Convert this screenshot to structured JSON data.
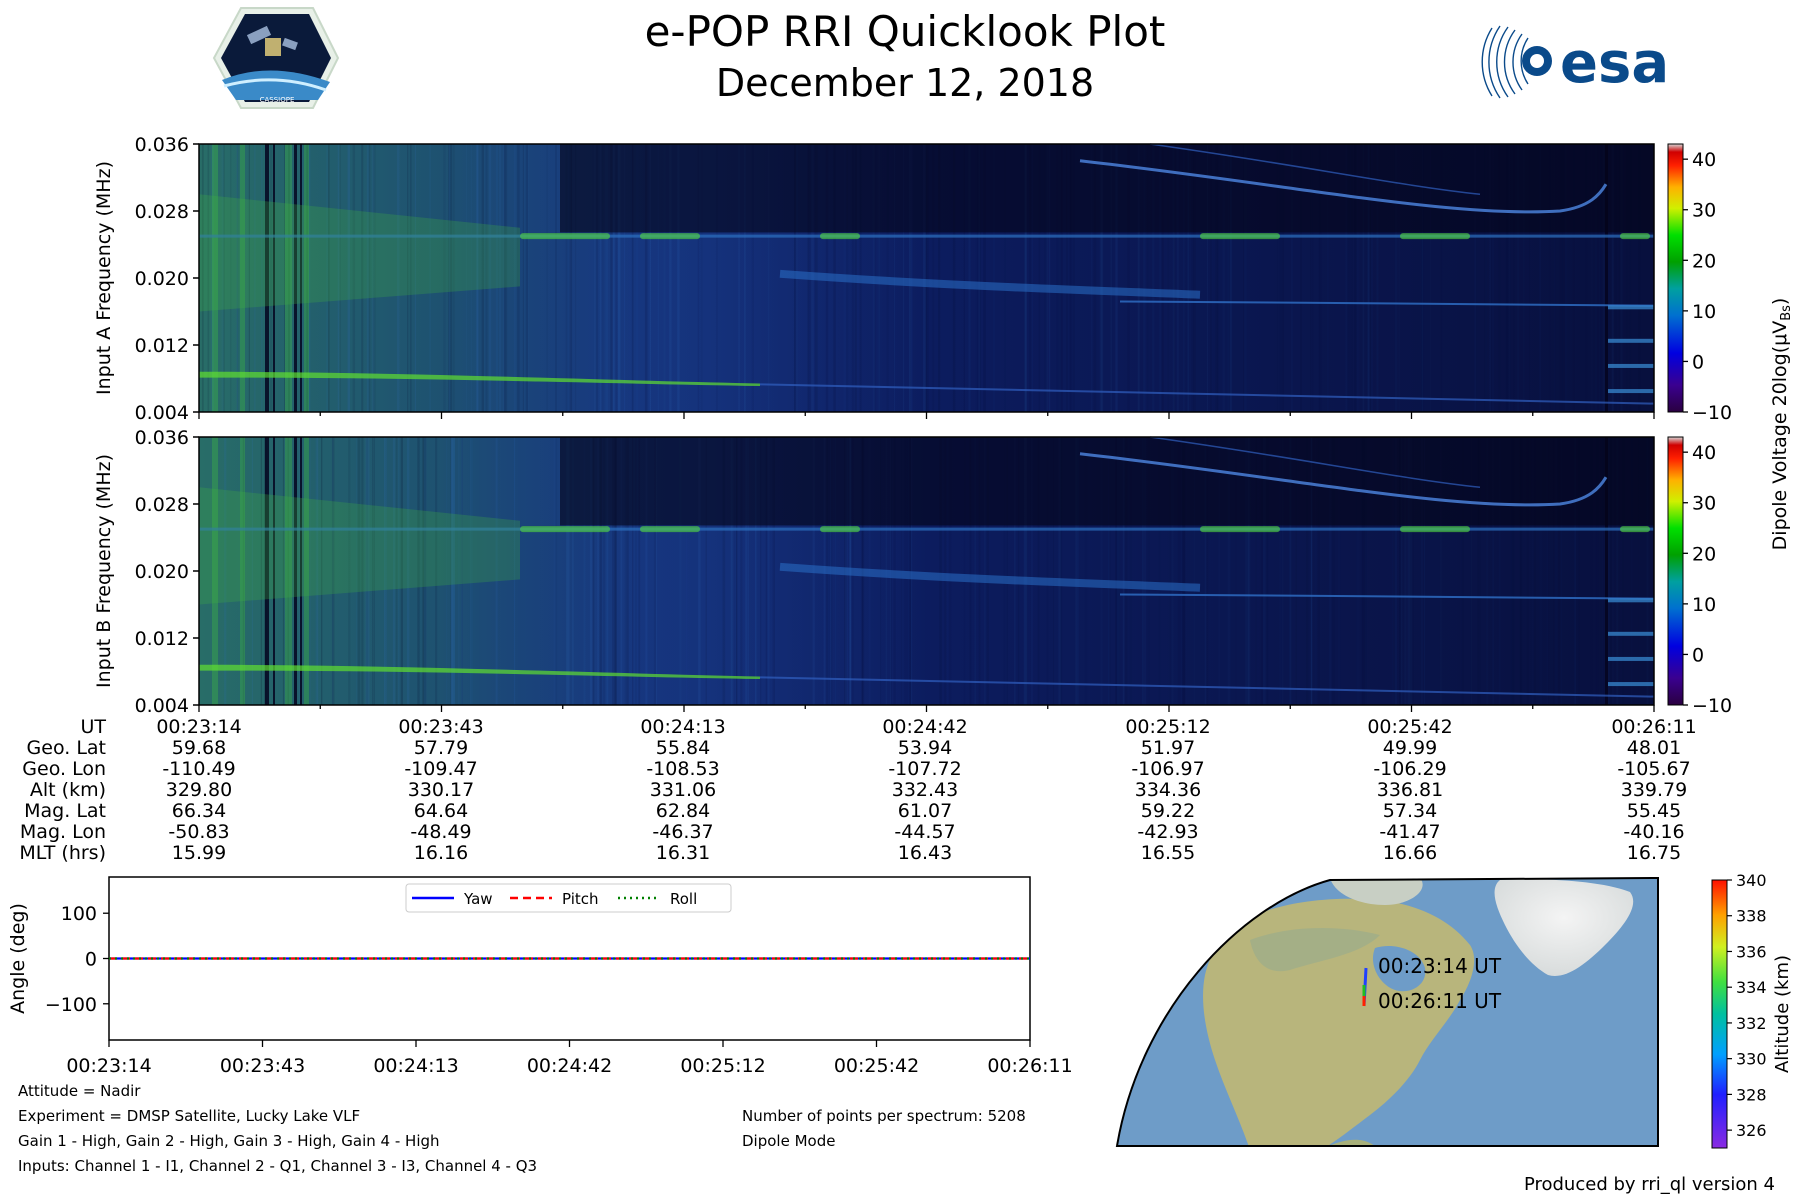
{
  "header": {
    "title": "e-POP RRI Quicklook Plot",
    "date": "December 12, 2018",
    "esa_logo_text": "esa",
    "cassiope_logo_text": "CASSIOPE"
  },
  "colors": {
    "yaw": "#0000ff",
    "pitch": "#ff0000",
    "roll": "#008000",
    "spectrogram_background": "#0a0a3c",
    "ocean": "#6e9cc8",
    "land": "#b5b87e"
  },
  "chart_data": [
    {
      "id": "input-a",
      "type": "heatmap",
      "ylabel": "Input A Frequency (MHz)",
      "yticks": [
        "0.004",
        "0.012",
        "0.020",
        "0.028",
        "0.036"
      ],
      "ylim": [
        0.004,
        0.036
      ],
      "colorbar": {
        "ticks": [
          "-10",
          "0",
          "10",
          "20",
          "30",
          "40"
        ],
        "range": [
          -10,
          43
        ]
      }
    },
    {
      "id": "input-b",
      "type": "heatmap",
      "ylabel": "Input B Frequency (MHz)",
      "yticks": [
        "0.004",
        "0.012",
        "0.020",
        "0.028",
        "0.036"
      ],
      "ylim": [
        0.004,
        0.036
      ],
      "colorbar": {
        "ticks": [
          "-10",
          "0",
          "10",
          "20",
          "30",
          "40"
        ],
        "range": [
          -10,
          43
        ]
      }
    },
    {
      "id": "attitude",
      "type": "line",
      "ylabel": "Angle (deg)",
      "yticks": [
        "−100",
        "0",
        "100"
      ],
      "ylim": [
        -180,
        180
      ],
      "xticks": [
        "00:23:14",
        "00:23:43",
        "00:24:13",
        "00:24:42",
        "00:25:12",
        "00:25:42",
        "00:26:11"
      ],
      "series": [
        {
          "name": "Yaw",
          "values": [
            0,
            0,
            0,
            0,
            0,
            0,
            0
          ]
        },
        {
          "name": "Pitch",
          "values": [
            0,
            0,
            0,
            0,
            0,
            0,
            0
          ]
        },
        {
          "name": "Roll",
          "values": [
            0,
            0,
            0,
            0,
            0,
            0,
            0
          ]
        }
      ]
    },
    {
      "id": "altitude-colorbar",
      "type": "map",
      "ylabel": "Altitude (km)",
      "ticks": [
        "326",
        "328",
        "330",
        "332",
        "334",
        "336",
        "338",
        "340"
      ],
      "range": [
        325,
        340
      ],
      "start_label": "00:23:14 UT",
      "end_label": "00:26:11 UT"
    }
  ],
  "spectrogram_shared": {
    "dipole_label": "Dipole Voltage 20log(μV",
    "dipole_sub": "Bs",
    "dipole_close": ")"
  },
  "ephemeris": {
    "labels": [
      "UT",
      "Geo. Lat",
      "Geo. Lon",
      "Alt (km)",
      "Mag. Lat",
      "Mag. Lon",
      "MLT (hrs)"
    ],
    "columns": [
      [
        "00:23:14",
        "59.68",
        "-110.49",
        "329.80",
        "66.34",
        "-50.83",
        "15.99"
      ],
      [
        "00:23:43",
        "57.79",
        "-109.47",
        "330.17",
        "64.64",
        "-48.49",
        "16.16"
      ],
      [
        "00:24:13",
        "55.84",
        "-108.53",
        "331.06",
        "62.84",
        "-46.37",
        "16.31"
      ],
      [
        "00:24:42",
        "53.94",
        "-107.72",
        "332.43",
        "61.07",
        "-44.57",
        "16.43"
      ],
      [
        "00:25:12",
        "51.97",
        "-106.97",
        "334.36",
        "59.22",
        "-42.93",
        "16.55"
      ],
      [
        "00:25:42",
        "49.99",
        "-106.29",
        "336.81",
        "57.34",
        "-41.47",
        "16.66"
      ],
      [
        "00:26:11",
        "48.01",
        "-105.67",
        "339.79",
        "55.45",
        "-40.16",
        "16.75"
      ]
    ]
  },
  "info": {
    "attitude": "Attitude = Nadir",
    "experiment": "Experiment = DMSP Satellite, Lucky Lake VLF",
    "gains": "Gain 1 - High, Gain 2 - High, Gain 3 - High, Gain 4 - High",
    "inputs": "Inputs: Channel 1 - I1, Channel 2 - Q1, Channel 3 - I3, Channel 4 - Q3",
    "points": "Number of points per spectrum: 5208",
    "mode": "Dipole Mode",
    "produced_by": "Produced by rri_ql version 4"
  }
}
